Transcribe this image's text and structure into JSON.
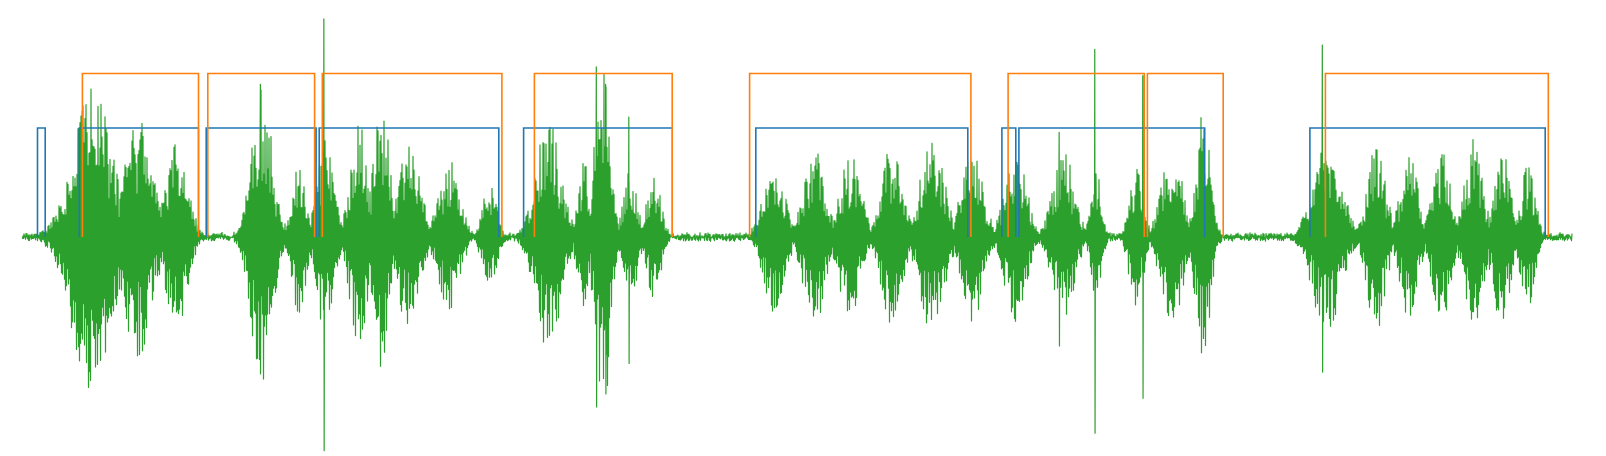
{
  "chart_data": {
    "type": "line",
    "title": "",
    "xlabel": "",
    "ylabel": "",
    "grid": false,
    "legend": "none",
    "axes_visible": false,
    "x_range": [
      0,
      100
    ],
    "y_range": [
      -1.0,
      1.0
    ],
    "colors": {
      "waveform": "#2ca02c",
      "vad_blue": "#1f77b4",
      "vad_orange": "#ff7f0e"
    },
    "series": [
      {
        "role": "waveform",
        "seed": 12345,
        "baseline_noise": 0.012,
        "silence_spans": [
          [
            0,
            3.8
          ],
          [
            44.6,
            47.6
          ],
          [
            77.6,
            83.6
          ],
          [
            98.6,
            100
          ]
        ],
        "bursts": [
          {
            "x": 4.5,
            "w": 2.2,
            "amp": 0.72
          },
          {
            "x": 7.5,
            "w": 1.6,
            "amp": 0.55
          },
          {
            "x": 10.0,
            "w": 1.2,
            "amp": 0.45
          },
          {
            "x": 15.5,
            "w": 1.2,
            "amp": 0.69
          },
          {
            "x": 17.9,
            "w": 0.8,
            "amp": 0.35
          },
          {
            "x": 19.6,
            "w": 1.0,
            "amp": 0.45
          },
          {
            "x": 21.8,
            "w": 1.0,
            "amp": 0.55
          },
          {
            "x": 23.2,
            "w": 1.0,
            "amp": 0.6
          },
          {
            "x": 25.0,
            "w": 1.2,
            "amp": 0.45
          },
          {
            "x": 27.6,
            "w": 1.2,
            "amp": 0.35
          },
          {
            "x": 30.2,
            "w": 0.8,
            "amp": 0.25
          },
          {
            "x": 34.0,
            "w": 1.4,
            "amp": 0.55
          },
          {
            "x": 36.3,
            "w": 0.7,
            "amp": 0.35
          },
          {
            "x": 37.5,
            "w": 0.8,
            "amp": 0.9
          },
          {
            "x": 39.3,
            "w": 0.8,
            "amp": 0.3
          },
          {
            "x": 40.8,
            "w": 0.8,
            "amp": 0.3
          },
          {
            "x": 48.6,
            "w": 1.2,
            "amp": 0.35
          },
          {
            "x": 51.2,
            "w": 1.2,
            "amp": 0.4
          },
          {
            "x": 53.5,
            "w": 1.2,
            "amp": 0.38
          },
          {
            "x": 56.2,
            "w": 1.2,
            "amp": 0.42
          },
          {
            "x": 58.8,
            "w": 1.4,
            "amp": 0.45
          },
          {
            "x": 61.4,
            "w": 1.2,
            "amp": 0.4
          },
          {
            "x": 64.2,
            "w": 1.2,
            "amp": 0.4
          },
          {
            "x": 67.3,
            "w": 1.2,
            "amp": 0.4
          },
          {
            "x": 69.4,
            "w": 0.6,
            "amp": 0.3
          },
          {
            "x": 72.0,
            "w": 0.8,
            "amp": 0.32
          },
          {
            "x": 74.3,
            "w": 1.2,
            "amp": 0.4
          },
          {
            "x": 76.3,
            "w": 0.8,
            "amp": 0.6
          },
          {
            "x": 84.3,
            "w": 1.6,
            "amp": 0.45
          },
          {
            "x": 87.5,
            "w": 1.0,
            "amp": 0.45
          },
          {
            "x": 89.6,
            "w": 1.0,
            "amp": 0.4
          },
          {
            "x": 91.7,
            "w": 1.0,
            "amp": 0.4
          },
          {
            "x": 93.8,
            "w": 1.0,
            "amp": 0.45
          },
          {
            "x": 95.6,
            "w": 1.0,
            "amp": 0.4
          },
          {
            "x": 97.3,
            "w": 0.8,
            "amp": 0.35
          }
        ],
        "spikes": [
          {
            "x": 19.5,
            "up": 1.0,
            "down": 0.98
          },
          {
            "x": 37.1,
            "up": 0.78,
            "down": 0.78
          },
          {
            "x": 37.7,
            "up": 0.7,
            "down": 0.72
          },
          {
            "x": 39.2,
            "up": 0.55,
            "down": 0.58
          },
          {
            "x": 15.4,
            "up": 0.7,
            "down": 0.47
          },
          {
            "x": 69.3,
            "up": 0.86,
            "down": 0.9
          },
          {
            "x": 72.4,
            "up": 0.74,
            "down": 0.74
          },
          {
            "x": 84.0,
            "up": 0.88,
            "down": 0.62
          },
          {
            "x": 67.0,
            "up": 0.48,
            "down": 0.5
          }
        ]
      },
      {
        "role": "vad_blue",
        "level": 0.5,
        "segments": [
          [
            1.0,
            1.5
          ],
          [
            3.7,
            11.4
          ],
          [
            11.9,
            19.0
          ],
          [
            19.2,
            30.8
          ],
          [
            32.4,
            42.0
          ],
          [
            47.4,
            61.1
          ],
          [
            63.3,
            64.2
          ],
          [
            64.4,
            76.4
          ],
          [
            83.2,
            98.4
          ]
        ]
      },
      {
        "role": "vad_orange",
        "level": 0.75,
        "segments": [
          [
            3.9,
            11.4
          ],
          [
            12.0,
            18.9
          ],
          [
            19.4,
            31.0
          ],
          [
            33.1,
            42.0
          ],
          [
            47.0,
            61.3
          ],
          [
            63.7,
            72.5
          ],
          [
            72.7,
            77.6
          ],
          [
            84.2,
            98.6
          ]
        ]
      }
    ]
  }
}
